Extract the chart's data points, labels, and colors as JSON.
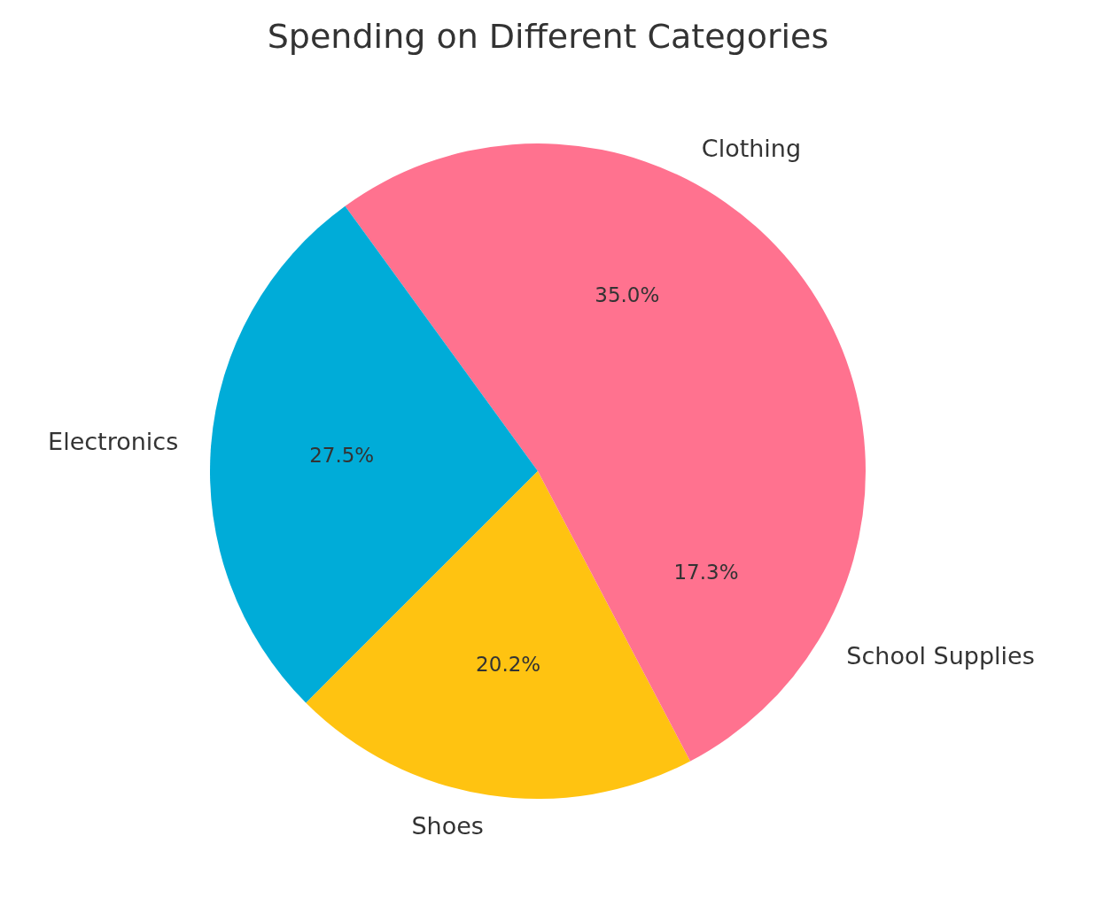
{
  "chart_data": {
    "type": "pie",
    "title": "Spending on Different Categories",
    "categories": [
      "Clothing",
      "Electronics",
      "Shoes",
      "School Supplies"
    ],
    "values": [
      35.0,
      27.5,
      20.2,
      17.3
    ],
    "value_labels": [
      "35.0%",
      "27.5%",
      "20.2%",
      "17.3%"
    ],
    "colors": [
      "#ff728f",
      "#00acd8",
      "#ffc311",
      "#ff728f"
    ],
    "legend": false
  }
}
